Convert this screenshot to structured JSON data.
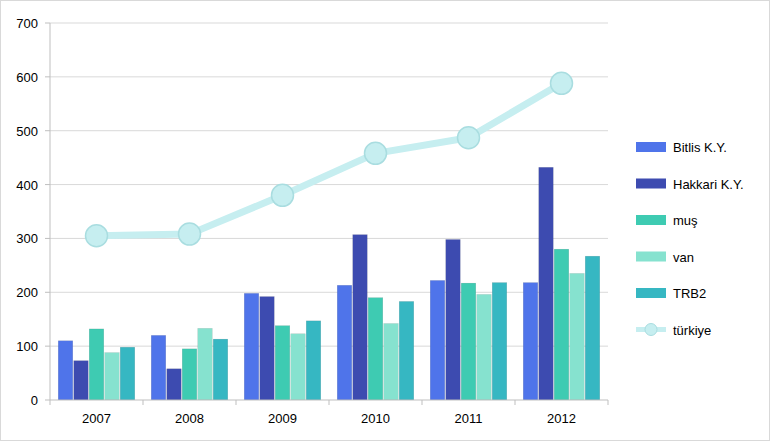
{
  "chart_data": {
    "type": "bar",
    "categories": [
      "2007",
      "2008",
      "2009",
      "2010",
      "2011",
      "2012"
    ],
    "series": [
      {
        "name": "Bitlis K.Y.",
        "color": "#4f74ea",
        "values": [
          110,
          120,
          198,
          213,
          222,
          218
        ]
      },
      {
        "name": "Hakkari K.Y.",
        "color": "#3d4bb0",
        "values": [
          73,
          58,
          192,
          307,
          298,
          432
        ]
      },
      {
        "name": "muş",
        "color": "#3ecbb2",
        "values": [
          132,
          95,
          138,
          190,
          217,
          280
        ]
      },
      {
        "name": "van",
        "color": "#86e2cf",
        "values": [
          88,
          133,
          123,
          142,
          196,
          235
        ]
      },
      {
        "name": "TRB2",
        "color": "#36b7c2",
        "values": [
          98,
          113,
          147,
          183,
          218,
          267
        ]
      },
      {
        "name": "türkiye",
        "color": "#c6eef0",
        "type": "line",
        "marker": "circle",
        "values": [
          305,
          308,
          380,
          458,
          487,
          588
        ]
      }
    ],
    "ylim": [
      0,
      700
    ],
    "yticks": [
      0,
      100,
      200,
      300,
      400,
      500,
      600,
      700
    ],
    "grid": true,
    "legend": "right"
  }
}
